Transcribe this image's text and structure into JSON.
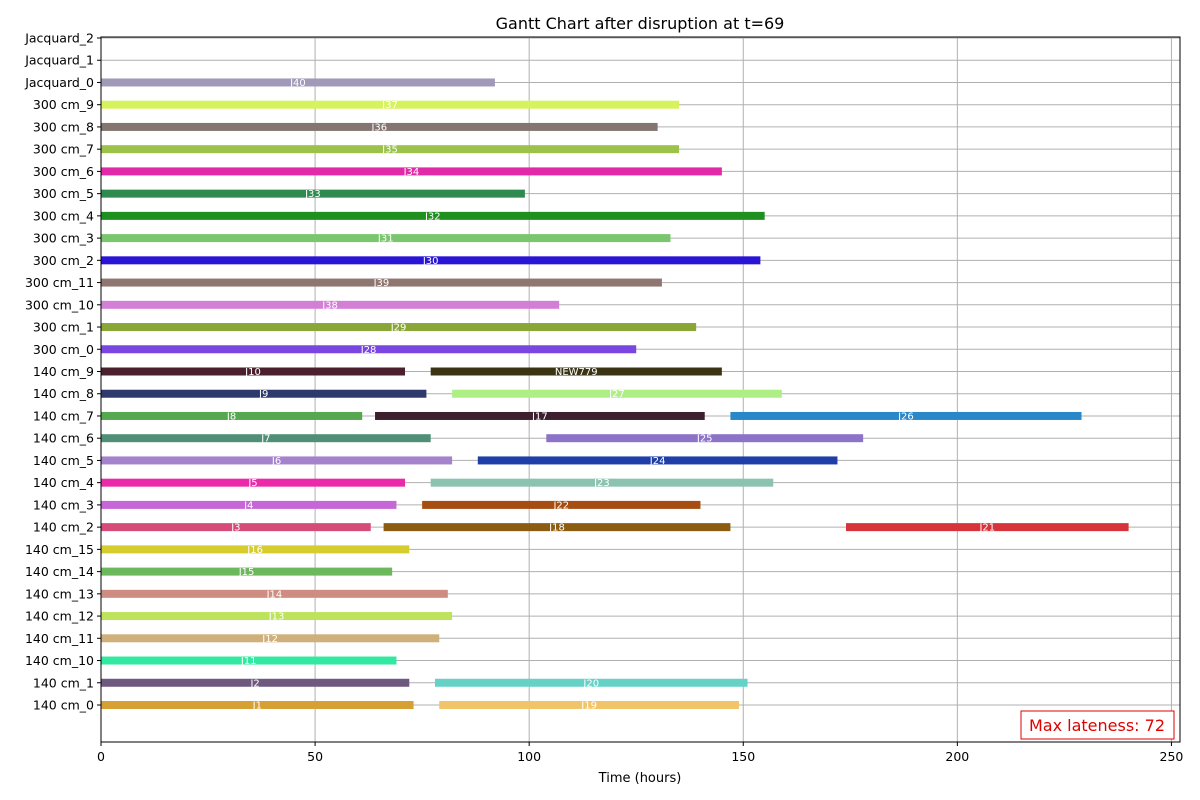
{
  "chart_data": {
    "type": "gantt",
    "title": "Gantt Chart after disruption at t=69",
    "xlabel": "Time (hours)",
    "ylabel": "",
    "xlim": [
      0,
      252
    ],
    "xticks": [
      0,
      50,
      100,
      150,
      200,
      250
    ],
    "grid": true,
    "machines": [
      "140 cm_0",
      "140 cm_1",
      "140 cm_10",
      "140 cm_11",
      "140 cm_12",
      "140 cm_13",
      "140 cm_14",
      "140 cm_15",
      "140 cm_2",
      "140 cm_3",
      "140 cm_4",
      "140 cm_5",
      "140 cm_6",
      "140 cm_7",
      "140 cm_8",
      "140 cm_9",
      "300 cm_0",
      "300 cm_1",
      "300 cm_10",
      "300 cm_11",
      "300 cm_2",
      "300 cm_3",
      "300 cm_4",
      "300 cm_5",
      "300 cm_6",
      "300 cm_7",
      "300 cm_8",
      "300 cm_9",
      "Jacquard_0",
      "Jacquard_1",
      "Jacquard_2"
    ],
    "tasks": [
      {
        "machine": "140 cm_0",
        "label": "J1",
        "start": 0,
        "end": 73,
        "color": "#d6a035"
      },
      {
        "machine": "140 cm_0",
        "label": "J19",
        "start": 79,
        "end": 149,
        "color": "#f2c46a"
      },
      {
        "machine": "140 cm_1",
        "label": "J2",
        "start": 0,
        "end": 72,
        "color": "#6e5a7e"
      },
      {
        "machine": "140 cm_1",
        "label": "J20",
        "start": 78,
        "end": 151,
        "color": "#66d1c6"
      },
      {
        "machine": "140 cm_10",
        "label": "J11",
        "start": 0,
        "end": 69,
        "color": "#33e8a0"
      },
      {
        "machine": "140 cm_11",
        "label": "J12",
        "start": 0,
        "end": 79,
        "color": "#cfb07a"
      },
      {
        "machine": "140 cm_12",
        "label": "J13",
        "start": 0,
        "end": 82,
        "color": "#bde35c"
      },
      {
        "machine": "140 cm_13",
        "label": "J14",
        "start": 0,
        "end": 81,
        "color": "#cf8d82"
      },
      {
        "machine": "140 cm_14",
        "label": "J15",
        "start": 0,
        "end": 68,
        "color": "#6db85c"
      },
      {
        "machine": "140 cm_15",
        "label": "J16",
        "start": 0,
        "end": 72,
        "color": "#d6cc2e"
      },
      {
        "machine": "140 cm_2",
        "label": "J3",
        "start": 0,
        "end": 63,
        "color": "#d64b78"
      },
      {
        "machine": "140 cm_2",
        "label": "J18",
        "start": 66,
        "end": 147,
        "color": "#8c5c12"
      },
      {
        "machine": "140 cm_2",
        "label": "J21",
        "start": 174,
        "end": 240,
        "color": "#d6333a"
      },
      {
        "machine": "140 cm_3",
        "label": "J4",
        "start": 0,
        "end": 69,
        "color": "#c766d6"
      },
      {
        "machine": "140 cm_3",
        "label": "J22",
        "start": 75,
        "end": 140,
        "color": "#a84d12"
      },
      {
        "machine": "140 cm_4",
        "label": "J5",
        "start": 0,
        "end": 71,
        "color": "#ea2aa8"
      },
      {
        "machine": "140 cm_4",
        "label": "J23",
        "start": 77,
        "end": 157,
        "color": "#8cc2b0"
      },
      {
        "machine": "140 cm_5",
        "label": "J6",
        "start": 0,
        "end": 82,
        "color": "#a582cc"
      },
      {
        "machine": "140 cm_5",
        "label": "J24",
        "start": 88,
        "end": 172,
        "color": "#1f3ea8"
      },
      {
        "machine": "140 cm_6",
        "label": "J7",
        "start": 0,
        "end": 77,
        "color": "#4f8f78"
      },
      {
        "machine": "140 cm_6",
        "label": "J25",
        "start": 104,
        "end": 178,
        "color": "#8c73c8"
      },
      {
        "machine": "140 cm_7",
        "label": "J8",
        "start": 0,
        "end": 61,
        "color": "#55a850"
      },
      {
        "machine": "140 cm_7",
        "label": "J17",
        "start": 64,
        "end": 141,
        "color": "#3d1f2e"
      },
      {
        "machine": "140 cm_7",
        "label": "J26",
        "start": 147,
        "end": 229,
        "color": "#2a88c8"
      },
      {
        "machine": "140 cm_8",
        "label": "J9",
        "start": 0,
        "end": 76,
        "color": "#2e3a6e"
      },
      {
        "machine": "140 cm_8",
        "label": "J27",
        "start": 82,
        "end": 159,
        "color": "#adef85"
      },
      {
        "machine": "140 cm_9",
        "label": "J10",
        "start": 0,
        "end": 71,
        "color": "#4a1f2e"
      },
      {
        "machine": "140 cm_9",
        "label": "NEW779",
        "start": 77,
        "end": 145,
        "color": "#3a3414"
      },
      {
        "machine": "300 cm_0",
        "label": "J28",
        "start": 0,
        "end": 125,
        "color": "#7a45e0"
      },
      {
        "machine": "300 cm_1",
        "label": "J29",
        "start": 0,
        "end": 139,
        "color": "#8aa636"
      },
      {
        "machine": "300 cm_10",
        "label": "J38",
        "start": 0,
        "end": 107,
        "color": "#d47fd6"
      },
      {
        "machine": "300 cm_11",
        "label": "J39",
        "start": 0,
        "end": 131,
        "color": "#8f7670"
      },
      {
        "machine": "300 cm_2",
        "label": "J30",
        "start": 0,
        "end": 154,
        "color": "#2a14d6"
      },
      {
        "machine": "300 cm_3",
        "label": "J31",
        "start": 0,
        "end": 133,
        "color": "#7ac66e"
      },
      {
        "machine": "300 cm_4",
        "label": "J32",
        "start": 0,
        "end": 155,
        "color": "#1f8f1f"
      },
      {
        "machine": "300 cm_5",
        "label": "J33",
        "start": 0,
        "end": 99,
        "color": "#2e8a4e"
      },
      {
        "machine": "300 cm_6",
        "label": "J34",
        "start": 0,
        "end": 145,
        "color": "#e02aa8"
      },
      {
        "machine": "300 cm_7",
        "label": "J35",
        "start": 0,
        "end": 135,
        "color": "#9cc24a"
      },
      {
        "machine": "300 cm_8",
        "label": "J36",
        "start": 0,
        "end": 130,
        "color": "#857570"
      },
      {
        "machine": "300 cm_9",
        "label": "J37",
        "start": 0,
        "end": 135,
        "color": "#d6f25c"
      },
      {
        "machine": "Jacquard_0",
        "label": "J40",
        "start": 0,
        "end": 92,
        "color": "#a09ab8"
      }
    ],
    "annotation": {
      "text": "Max lateness: 72",
      "color": "#e00000",
      "position": "bottom-right"
    }
  }
}
